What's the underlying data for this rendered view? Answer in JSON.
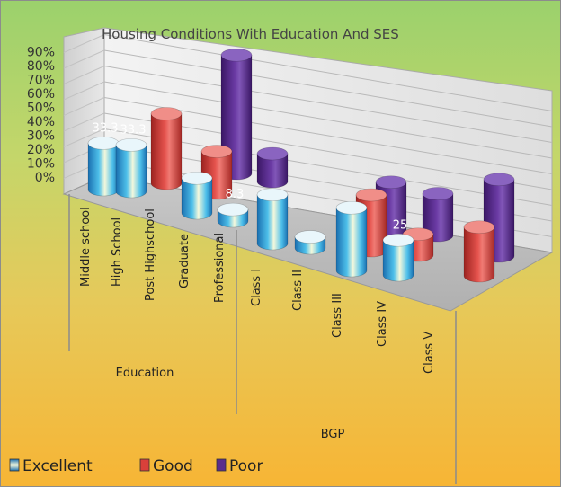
{
  "chart_data": {
    "type": "bar",
    "title": "Housing Conditions With Education And SES",
    "xlabel": "",
    "ylabel": "",
    "y_ticks": [
      "0%",
      "10%",
      "20%",
      "30%",
      "40%",
      "50%",
      "60%",
      "70%",
      "80%",
      "90%"
    ],
    "ylim": [
      0,
      90
    ],
    "categories": [
      "Middle school",
      "High School",
      "Post Highschool",
      "Graduate",
      "Professional",
      "Class I",
      "Class II",
      "Class III",
      "Class IV",
      "Class V"
    ],
    "groups": [
      {
        "label": "Education",
        "categories": [
          "Middle school",
          "High School",
          "Post Highschool",
          "Graduate",
          "Professional"
        ]
      },
      {
        "label": "BGP",
        "categories": [
          "Class I",
          "Class II",
          "Class III",
          "Class IV",
          "Class V"
        ]
      }
    ],
    "series": [
      {
        "name": "Excellent",
        "color": "#3fa5d6",
        "values": [
          33.3,
          33.3,
          0,
          25,
          8.3,
          35,
          8,
          45,
          25,
          0
        ]
      },
      {
        "name": "Good",
        "color": "#d9403a",
        "values": [
          0,
          0,
          50,
          30,
          0,
          0,
          0,
          40,
          15,
          35
        ]
      },
      {
        "name": "Poor",
        "color": "#5a2d8c",
        "values": [
          0,
          0,
          0,
          85,
          20,
          0,
          0,
          35,
          30,
          55
        ]
      }
    ],
    "data_labels": [
      {
        "series": "Excellent",
        "category": "Middle school",
        "text": "33.3"
      },
      {
        "series": "Excellent",
        "category": "High School",
        "text": "33.3"
      },
      {
        "series": "Excellent",
        "category": "Professional",
        "text": "8.3"
      },
      {
        "series": "Excellent",
        "category": "Class IV",
        "text": "25"
      }
    ],
    "legend": {
      "position": "bottom-left",
      "entries": [
        "Excellent",
        "Good",
        "Poor"
      ]
    },
    "grid": true,
    "style": "3d-cylinder"
  }
}
